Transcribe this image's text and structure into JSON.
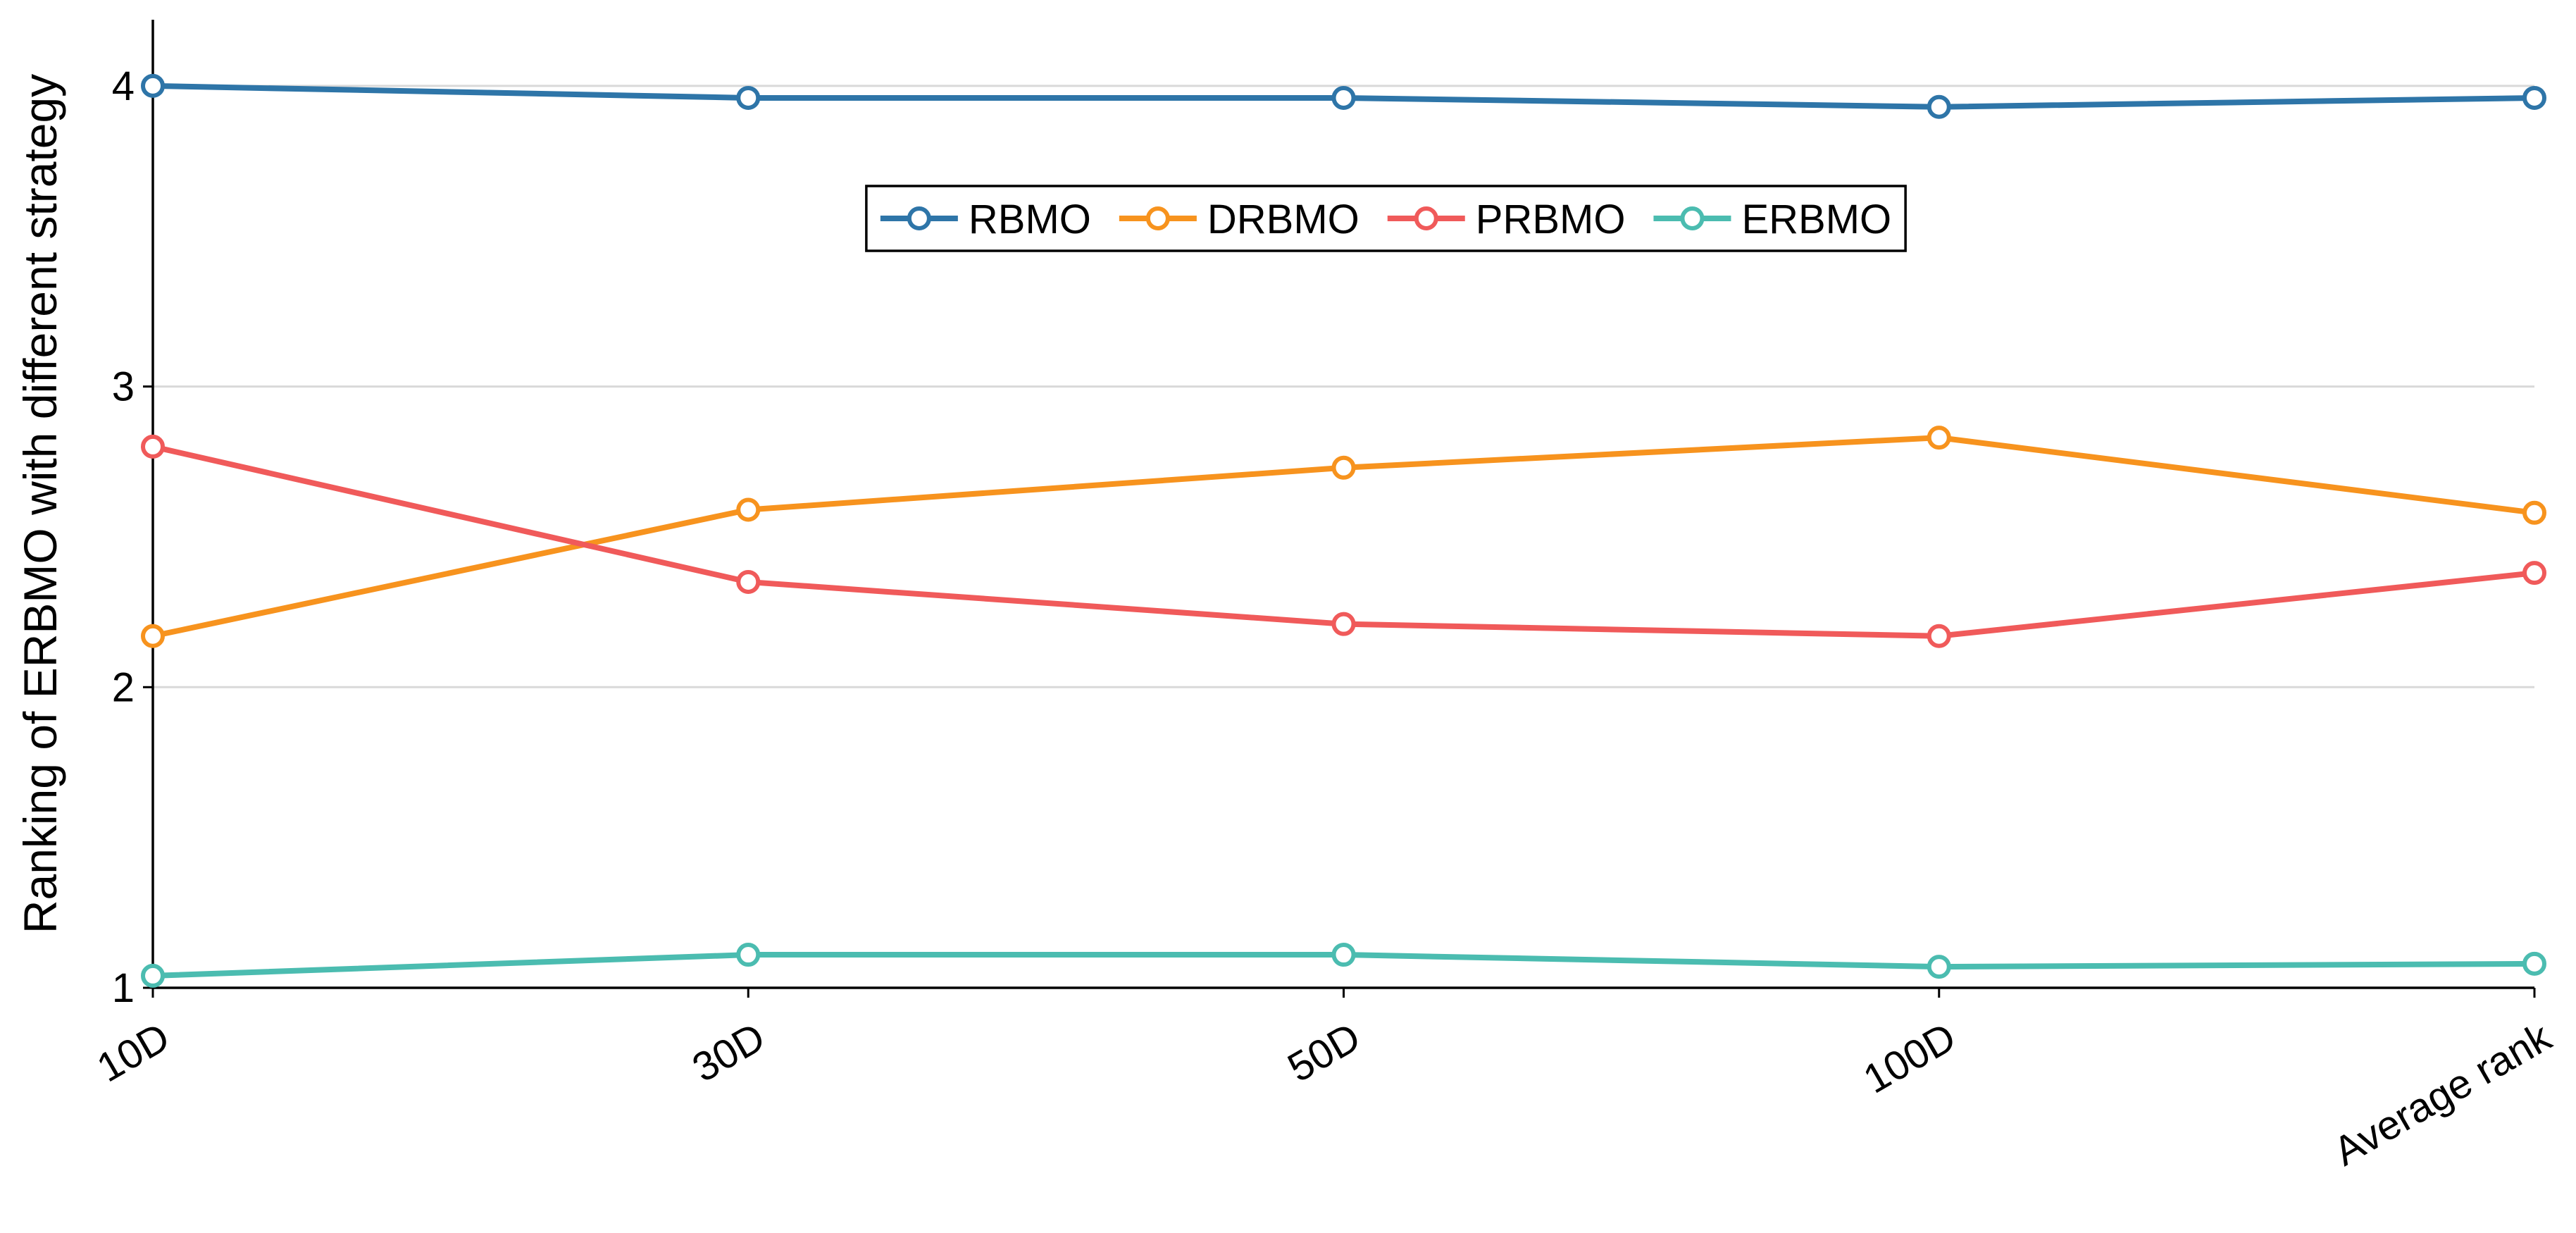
{
  "chart_data": {
    "type": "line",
    "y_label": "Ranking of ERBMO with different strategy",
    "categories": [
      "10D",
      "30D",
      "50D",
      "100D",
      "Average rank"
    ],
    "series": [
      {
        "name": "RBMO",
        "color": "#2e75a8",
        "values": [
          4.0,
          3.96,
          3.96,
          3.93,
          3.96
        ]
      },
      {
        "name": "DRBMO",
        "color": "#f7931e",
        "values": [
          2.17,
          2.59,
          2.73,
          2.83,
          2.58
        ]
      },
      {
        "name": "PRBMO",
        "color": "#f05a5a",
        "values": [
          2.8,
          2.35,
          2.21,
          2.17,
          2.38
        ]
      },
      {
        "name": "ERBMO",
        "color": "#4bbcb0",
        "values": [
          1.04,
          1.11,
          1.11,
          1.07,
          1.08
        ]
      }
    ],
    "ylim": [
      1,
      4.22
    ],
    "yticks": [
      1,
      2,
      3,
      4
    ],
    "grid": true,
    "legend": "top"
  }
}
